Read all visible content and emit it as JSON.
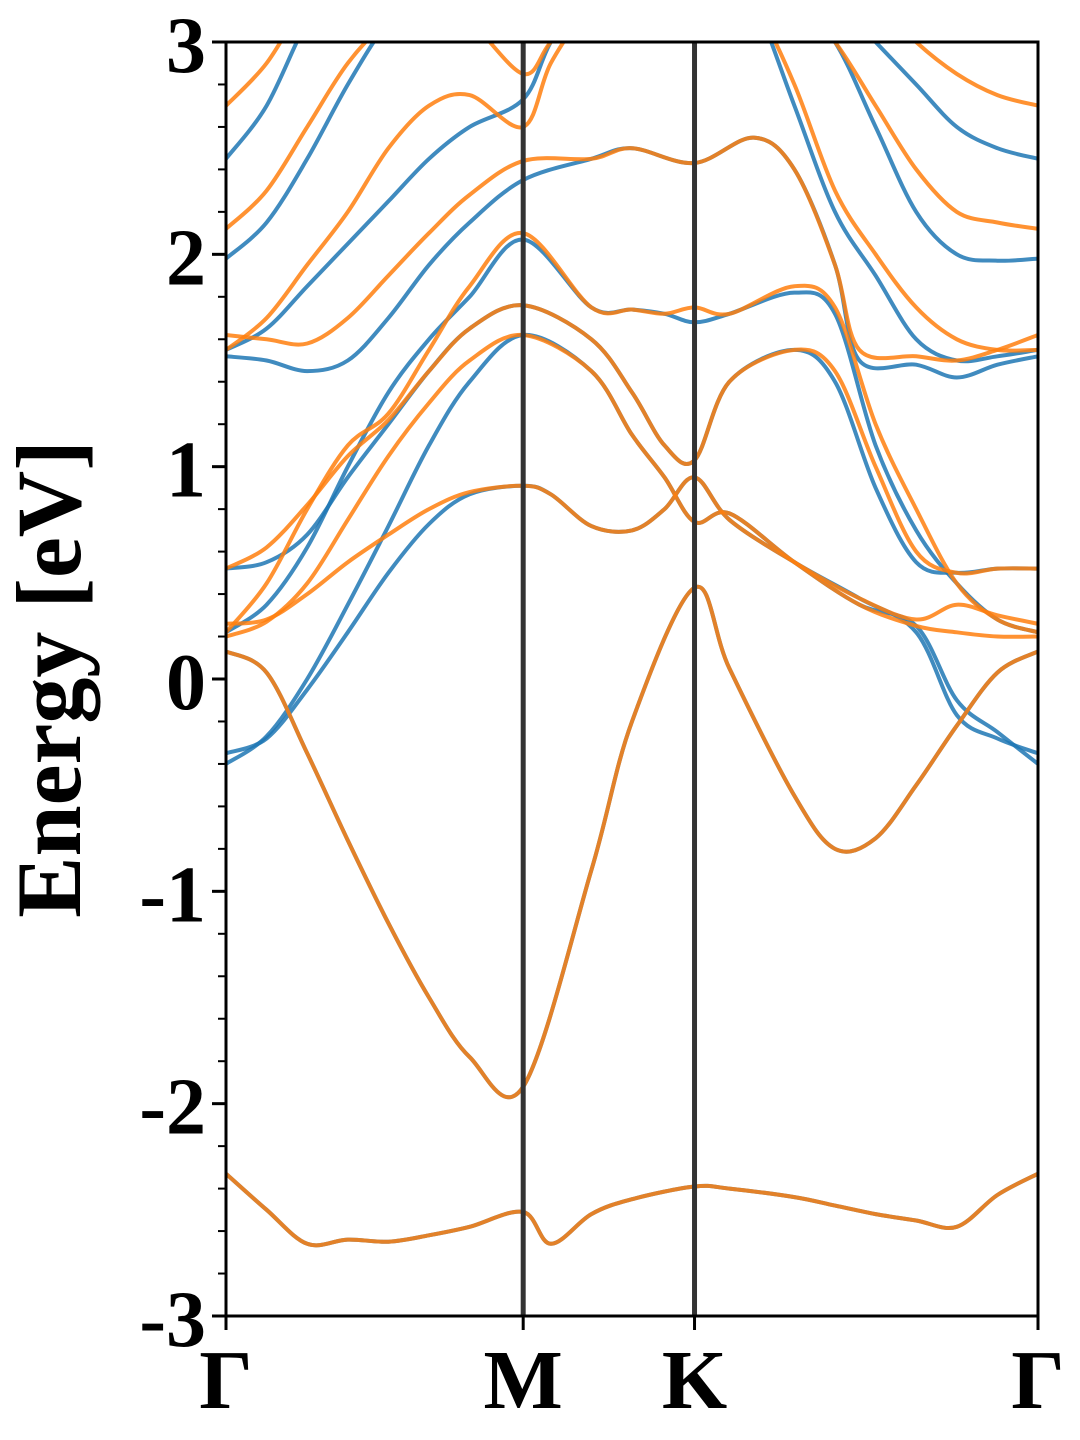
{
  "chart_data": {
    "type": "line",
    "title": "",
    "xlabel": "",
    "ylabel": "Energy [eV]",
    "ylim": [
      -3,
      3
    ],
    "xlim": [
      0,
      1
    ],
    "y_major_ticks": [
      {
        "value": -3,
        "label": "-3"
      },
      {
        "value": -2,
        "label": "-2"
      },
      {
        "value": -1,
        "label": "-1"
      },
      {
        "value": 0,
        "label": "0"
      },
      {
        "value": 1,
        "label": "1"
      },
      {
        "value": 2,
        "label": "2"
      },
      {
        "value": 3,
        "label": "3"
      }
    ],
    "y_minor_step": 0.2,
    "high_symmetry_points": [
      {
        "label": "Γ",
        "x": 0.0
      },
      {
        "label": "M",
        "x": 0.366
      },
      {
        "label": "K",
        "x": 0.577
      },
      {
        "label": "Γ",
        "x": 1.0
      }
    ],
    "grid": false,
    "legend": "none",
    "colors": {
      "series_a": "#1f77b4",
      "series_b": "#ff7f0e",
      "divider": "#333333"
    },
    "series": [
      {
        "color": "#1f77b4",
        "bands": [
          {
            "x": [
              0,
              0.05,
              0.1,
              0.15,
              0.2,
              0.25,
              0.3,
              0.366,
              0.4,
              0.45,
              0.5,
              0.577,
              0.62,
              0.7,
              0.75,
              0.8,
              0.85,
              0.9,
              0.95,
              1.0
            ],
            "y": [
              -2.33,
              -2.5,
              -2.66,
              -2.64,
              -2.65,
              -2.62,
              -2.58,
              -2.51,
              -2.66,
              -2.52,
              -2.45,
              -2.39,
              -2.4,
              -2.44,
              -2.48,
              -2.52,
              -2.55,
              -2.58,
              -2.43,
              -2.33
            ]
          },
          {
            "x": [
              0,
              0.05,
              0.1,
              0.15,
              0.2,
              0.25,
              0.3,
              0.366,
              0.45,
              0.5,
              0.577,
              0.62,
              0.7,
              0.75,
              0.8,
              0.85,
              0.9,
              0.95,
              1.0
            ],
            "y": [
              0.13,
              0.03,
              -0.35,
              -0.76,
              -1.15,
              -1.5,
              -1.78,
              -1.92,
              -0.9,
              -0.2,
              0.43,
              0.05,
              -0.55,
              -0.8,
              -0.75,
              -0.5,
              -0.22,
              0.03,
              0.13
            ]
          },
          {
            "x": [
              0,
              0.05,
              0.1,
              0.15,
              0.2,
              0.25,
              0.3,
              0.366,
              0.4,
              0.45,
              0.5,
              0.54,
              0.577,
              0.62,
              0.7,
              0.78,
              0.85,
              0.9,
              0.95,
              1.0
            ],
            "y": [
              -0.35,
              -0.28,
              -0.05,
              0.22,
              0.5,
              0.73,
              0.87,
              0.91,
              0.87,
              0.72,
              0.7,
              0.8,
              0.95,
              0.75,
              0.55,
              0.38,
              0.22,
              -0.17,
              -0.28,
              -0.35
            ]
          },
          {
            "x": [
              0,
              0.05,
              0.1,
              0.15,
              0.2,
              0.25,
              0.3,
              0.366,
              0.45,
              0.5,
              0.54,
              0.577,
              0.62,
              0.7,
              0.78,
              0.85,
              0.9,
              0.95,
              1.0
            ],
            "y": [
              -0.4,
              -0.27,
              0.0,
              0.35,
              0.72,
              1.1,
              1.4,
              1.62,
              1.45,
              1.15,
              0.95,
              0.74,
              0.78,
              0.55,
              0.35,
              0.25,
              -0.1,
              -0.25,
              -0.4
            ]
          },
          {
            "x": [
              0,
              0.05,
              0.1,
              0.15,
              0.2,
              0.25,
              0.3,
              0.366,
              0.45,
              0.5,
              0.54,
              0.577,
              0.62,
              0.7,
              0.75,
              0.8,
              0.85,
              0.9,
              0.95,
              1.0
            ],
            "y": [
              0.52,
              0.55,
              0.68,
              0.95,
              1.2,
              1.45,
              1.65,
              1.76,
              1.6,
              1.35,
              1.1,
              1.03,
              1.4,
              1.55,
              1.4,
              0.9,
              0.55,
              0.5,
              0.52,
              0.52
            ]
          },
          {
            "x": [
              0,
              0.05,
              0.1,
              0.15,
              0.2,
              0.25,
              0.3,
              0.366,
              0.45,
              0.5,
              0.54,
              0.577,
              0.62,
              0.7,
              0.75,
              0.8,
              0.85,
              0.9,
              0.95,
              1.0
            ],
            "y": [
              0.22,
              0.35,
              0.62,
              1.0,
              1.35,
              1.6,
              1.8,
              2.07,
              1.75,
              1.74,
              1.72,
              1.68,
              1.72,
              1.82,
              1.72,
              1.1,
              0.7,
              0.45,
              0.28,
              0.22
            ]
          },
          {
            "x": [
              0,
              0.05,
              0.1,
              0.15,
              0.2,
              0.25,
              0.3,
              0.366,
              0.45,
              0.5,
              0.577,
              0.65,
              0.7,
              0.75,
              0.78,
              0.85,
              0.9,
              0.95,
              1.0
            ],
            "y": [
              1.52,
              1.5,
              1.45,
              1.5,
              1.7,
              1.95,
              2.15,
              2.35,
              2.45,
              2.5,
              2.43,
              2.55,
              2.4,
              1.95,
              1.5,
              1.48,
              1.42,
              1.48,
              1.52
            ]
          },
          {
            "x": [
              0,
              0.05,
              0.1,
              0.15,
              0.2,
              0.25,
              0.3,
              0.366,
              0.4,
              0.45,
              0.5,
              0.55,
              0.6,
              0.65,
              0.7,
              0.75,
              0.8,
              0.85,
              0.9,
              0.95,
              1.0
            ],
            "y": [
              1.55,
              1.65,
              1.85,
              2.05,
              2.25,
              2.45,
              2.6,
              2.73,
              3.0,
              3.3,
              3.5,
              3.6,
              3.5,
              3.2,
              2.7,
              2.2,
              1.9,
              1.6,
              1.5,
              1.52,
              1.55
            ]
          },
          {
            "x": [
              0,
              0.05,
              0.1,
              0.15,
              0.2,
              0.25,
              0.3,
              0.366,
              0.4,
              0.45,
              0.5,
              0.55,
              0.6,
              0.65,
              0.7,
              0.75,
              0.8,
              0.85,
              0.9,
              0.95,
              1.0
            ],
            "y": [
              1.98,
              2.15,
              2.45,
              2.8,
              3.1,
              3.3,
              3.4,
              3.5,
              3.5,
              3.4,
              3.3,
              3.2,
              3.2,
              3.3,
              3.2,
              3.0,
              2.6,
              2.2,
              2.0,
              1.97,
              1.98
            ]
          },
          {
            "x": [
              0,
              0.05,
              0.1,
              0.15,
              0.2,
              0.25,
              0.3,
              0.366,
              0.4,
              0.45,
              0.5,
              0.55,
              0.6,
              0.65,
              0.7,
              0.75,
              0.8,
              0.85,
              0.9,
              0.95,
              1.0
            ],
            "y": [
              2.45,
              2.7,
              3.1,
              3.4,
              3.5,
              3.5,
              3.4,
              3.3,
              3.3,
              3.4,
              3.5,
              3.6,
              3.6,
              3.5,
              3.4,
              3.2,
              3.0,
              2.8,
              2.6,
              2.5,
              2.45
            ]
          }
        ]
      },
      {
        "color": "#ff7f0e",
        "bands": [
          {
            "x": [
              0,
              0.05,
              0.1,
              0.15,
              0.2,
              0.25,
              0.3,
              0.366,
              0.4,
              0.45,
              0.5,
              0.577,
              0.62,
              0.7,
              0.75,
              0.8,
              0.85,
              0.9,
              0.95,
              1.0
            ],
            "y": [
              -2.33,
              -2.5,
              -2.66,
              -2.64,
              -2.65,
              -2.62,
              -2.58,
              -2.51,
              -2.66,
              -2.52,
              -2.45,
              -2.39,
              -2.4,
              -2.44,
              -2.48,
              -2.52,
              -2.55,
              -2.58,
              -2.43,
              -2.33
            ]
          },
          {
            "x": [
              0,
              0.05,
              0.1,
              0.15,
              0.2,
              0.25,
              0.3,
              0.366,
              0.45,
              0.5,
              0.577,
              0.62,
              0.7,
              0.75,
              0.8,
              0.85,
              0.9,
              0.95,
              1.0
            ],
            "y": [
              0.13,
              0.03,
              -0.35,
              -0.76,
              -1.15,
              -1.5,
              -1.78,
              -1.92,
              -0.9,
              -0.2,
              0.43,
              0.05,
              -0.55,
              -0.8,
              -0.75,
              -0.5,
              -0.22,
              0.03,
              0.13
            ]
          },
          {
            "x": [
              0,
              0.05,
              0.1,
              0.15,
              0.2,
              0.25,
              0.3,
              0.366,
              0.4,
              0.45,
              0.5,
              0.54,
              0.577,
              0.62,
              0.7,
              0.78,
              0.85,
              0.9,
              0.95,
              1.0
            ],
            "y": [
              0.26,
              0.28,
              0.4,
              0.55,
              0.68,
              0.8,
              0.88,
              0.91,
              0.87,
              0.72,
              0.7,
              0.8,
              0.95,
              0.75,
              0.55,
              0.38,
              0.28,
              0.35,
              0.3,
              0.26
            ]
          },
          {
            "x": [
              0,
              0.05,
              0.1,
              0.15,
              0.2,
              0.25,
              0.3,
              0.366,
              0.45,
              0.5,
              0.54,
              0.577,
              0.62,
              0.7,
              0.78,
              0.85,
              0.9,
              0.95,
              1.0
            ],
            "y": [
              0.2,
              0.27,
              0.45,
              0.75,
              1.05,
              1.3,
              1.5,
              1.62,
              1.45,
              1.15,
              0.95,
              0.74,
              0.78,
              0.55,
              0.35,
              0.25,
              0.22,
              0.2,
              0.2
            ]
          },
          {
            "x": [
              0,
              0.05,
              0.1,
              0.15,
              0.2,
              0.25,
              0.3,
              0.366,
              0.45,
              0.5,
              0.54,
              0.577,
              0.62,
              0.7,
              0.75,
              0.8,
              0.85,
              0.9,
              0.95,
              1.0
            ],
            "y": [
              0.52,
              0.62,
              0.82,
              1.05,
              1.22,
              1.45,
              1.65,
              1.76,
              1.6,
              1.35,
              1.1,
              1.03,
              1.4,
              1.55,
              1.45,
              1.0,
              0.6,
              0.5,
              0.52,
              0.52
            ]
          },
          {
            "x": [
              0,
              0.05,
              0.1,
              0.15,
              0.2,
              0.25,
              0.3,
              0.366,
              0.45,
              0.5,
              0.54,
              0.577,
              0.62,
              0.7,
              0.75,
              0.8,
              0.85,
              0.9,
              0.95,
              1.0
            ],
            "y": [
              0.22,
              0.45,
              0.8,
              1.1,
              1.25,
              1.55,
              1.85,
              2.1,
              1.75,
              1.74,
              1.72,
              1.75,
              1.72,
              1.85,
              1.75,
              1.2,
              0.8,
              0.45,
              0.28,
              0.22
            ]
          },
          {
            "x": [
              0,
              0.05,
              0.1,
              0.15,
              0.2,
              0.25,
              0.3,
              0.366,
              0.45,
              0.5,
              0.577,
              0.65,
              0.7,
              0.75,
              0.78,
              0.85,
              0.9,
              0.95,
              1.0
            ],
            "y": [
              1.62,
              1.6,
              1.58,
              1.7,
              1.9,
              2.1,
              2.28,
              2.44,
              2.45,
              2.5,
              2.43,
              2.55,
              2.4,
              1.95,
              1.55,
              1.52,
              1.5,
              1.55,
              1.62
            ]
          },
          {
            "x": [
              0,
              0.05,
              0.1,
              0.15,
              0.2,
              0.25,
              0.3,
              0.366,
              0.4,
              0.45,
              0.5,
              0.55,
              0.6,
              0.65,
              0.7,
              0.75,
              0.8,
              0.85,
              0.9,
              0.95,
              1.0
            ],
            "y": [
              1.55,
              1.7,
              1.95,
              2.2,
              2.5,
              2.7,
              2.75,
              2.6,
              2.9,
              3.2,
              3.5,
              3.6,
              3.5,
              3.2,
              2.8,
              2.3,
              2.0,
              1.75,
              1.6,
              1.55,
              1.55
            ]
          },
          {
            "x": [
              0,
              0.05,
              0.1,
              0.15,
              0.2,
              0.25,
              0.3,
              0.366,
              0.4,
              0.45,
              0.5,
              0.55,
              0.6,
              0.65,
              0.7,
              0.75,
              0.8,
              0.85,
              0.9,
              0.95,
              1.0
            ],
            "y": [
              2.12,
              2.3,
              2.6,
              2.9,
              3.1,
              3.2,
              3.1,
              2.85,
              3.0,
              3.2,
              3.3,
              3.3,
              3.3,
              3.3,
              3.2,
              3.0,
              2.7,
              2.4,
              2.2,
              2.15,
              2.12
            ]
          },
          {
            "x": [
              0,
              0.05,
              0.1,
              0.15,
              0.2,
              0.25,
              0.3,
              0.366,
              0.4,
              0.45,
              0.5,
              0.55,
              0.6,
              0.65,
              0.7,
              0.75,
              0.8,
              0.85,
              0.9,
              0.95,
              1.0
            ],
            "y": [
              2.7,
              2.9,
              3.2,
              3.4,
              3.5,
              3.5,
              3.4,
              3.3,
              3.3,
              3.4,
              3.5,
              3.6,
              3.6,
              3.5,
              3.4,
              3.3,
              3.2,
              3.0,
              2.85,
              2.75,
              2.7
            ]
          }
        ]
      }
    ]
  }
}
